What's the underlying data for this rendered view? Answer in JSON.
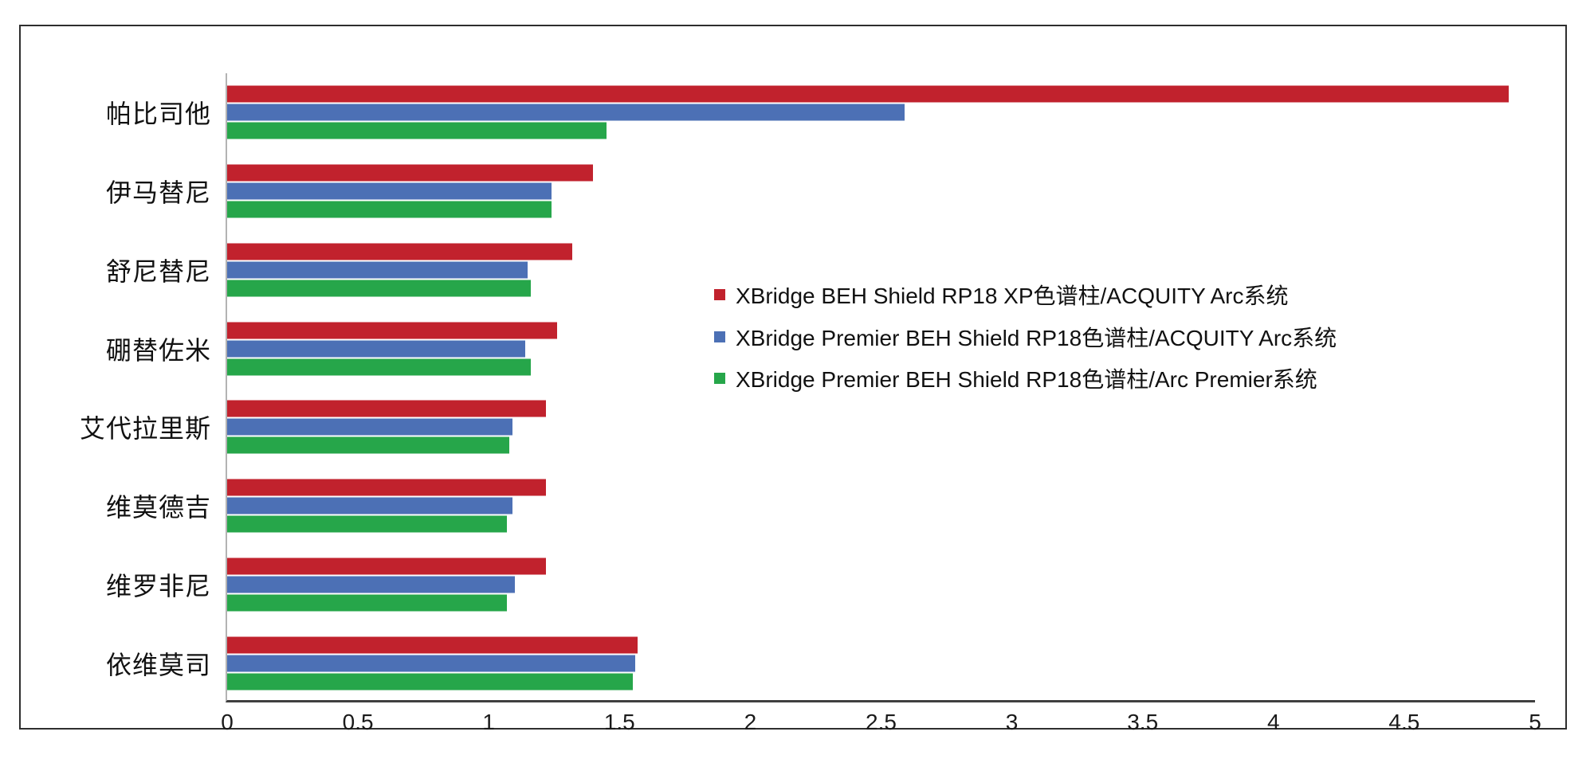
{
  "chart_data": {
    "type": "bar",
    "orientation": "horizontal",
    "categories": [
      "帕比司他",
      "伊马替尼",
      "舒尼替尼",
      "硼替佐米",
      "艾代拉里斯",
      "维莫德吉",
      "维罗非尼",
      "依维莫司"
    ],
    "series": [
      {
        "name": "XBridge BEH Shield RP18 XP色谱柱/ACQUITY Arc系统",
        "color": "#c1222d",
        "values": [
          4.9,
          1.4,
          1.32,
          1.26,
          1.22,
          1.22,
          1.22,
          1.57
        ]
      },
      {
        "name": "XBridge Premier BEH Shield RP18色谱柱/ACQUITY Arc系统",
        "color": "#4c70b5",
        "values": [
          2.59,
          1.24,
          1.15,
          1.14,
          1.09,
          1.09,
          1.1,
          1.56
        ]
      },
      {
        "name": "XBridge Premier BEH Shield RP18色谱柱/Arc Premier系统",
        "color": "#26a64a",
        "values": [
          1.45,
          1.24,
          1.16,
          1.16,
          1.08,
          1.07,
          1.07,
          1.55
        ]
      }
    ],
    "xlim": [
      0,
      5
    ],
    "xticks": [
      "0",
      "0.5",
      "1",
      "1.5",
      "2",
      "2.5",
      "3",
      "3.5",
      "4",
      "4.5",
      "5"
    ],
    "xtick_values": [
      0,
      0.5,
      1,
      1.5,
      2,
      2.5,
      3,
      3.5,
      4,
      4.5,
      5
    ],
    "grid": false,
    "legend_position": "center-right"
  }
}
